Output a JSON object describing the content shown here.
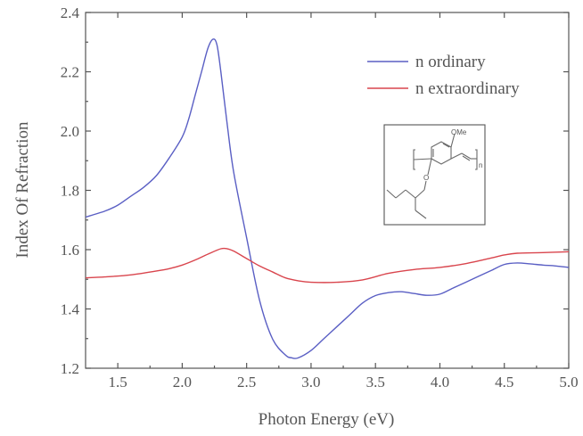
{
  "chart_data": {
    "type": "line",
    "xlabel": "Photon Energy (eV)",
    "ylabel": "Index Of Refraction",
    "xlim": [
      1.25,
      5.0
    ],
    "ylim": [
      1.2,
      2.4
    ],
    "xticks": [
      1.5,
      2.0,
      2.5,
      3.0,
      3.5,
      4.0,
      4.5,
      5.0
    ],
    "xtick_labels": [
      "1.5",
      "2.0",
      "2.5",
      "3.0",
      "3.5",
      "4.0",
      "4.5",
      "5.0"
    ],
    "yticks": [
      1.2,
      1.4,
      1.6,
      1.8,
      2.0,
      2.2,
      2.4
    ],
    "ytick_labels": [
      "1.2",
      "1.4",
      "1.6",
      "1.8",
      "2.0",
      "2.2",
      "2.4"
    ],
    "legend_position": "top-right",
    "grid": false,
    "series": [
      {
        "name": "n ordinary",
        "color": "#5a5fc4",
        "x": [
          1.25,
          1.4,
          1.5,
          1.6,
          1.7,
          1.8,
          1.9,
          2.0,
          2.05,
          2.1,
          2.15,
          2.2,
          2.24,
          2.27,
          2.3,
          2.35,
          2.4,
          2.5,
          2.6,
          2.7,
          2.8,
          2.85,
          2.9,
          3.0,
          3.1,
          3.2,
          3.3,
          3.4,
          3.5,
          3.6,
          3.7,
          3.8,
          3.9,
          4.0,
          4.1,
          4.2,
          4.3,
          4.4,
          4.5,
          4.6,
          4.7,
          4.8,
          4.9,
          5.0
        ],
        "y": [
          1.71,
          1.73,
          1.75,
          1.78,
          1.81,
          1.85,
          1.91,
          1.98,
          2.04,
          2.12,
          2.2,
          2.28,
          2.31,
          2.29,
          2.2,
          2.02,
          1.86,
          1.64,
          1.43,
          1.3,
          1.245,
          1.235,
          1.235,
          1.26,
          1.3,
          1.34,
          1.38,
          1.42,
          1.445,
          1.455,
          1.458,
          1.452,
          1.446,
          1.45,
          1.47,
          1.49,
          1.51,
          1.53,
          1.55,
          1.555,
          1.552,
          1.548,
          1.545,
          1.54
        ]
      },
      {
        "name": "n extraordinary",
        "color": "#d9454d",
        "x": [
          1.25,
          1.4,
          1.6,
          1.8,
          1.9,
          2.0,
          2.1,
          2.2,
          2.3,
          2.35,
          2.4,
          2.5,
          2.6,
          2.7,
          2.8,
          2.9,
          3.0,
          3.2,
          3.4,
          3.6,
          3.8,
          4.0,
          4.2,
          4.4,
          4.5,
          4.6,
          4.8,
          5.0
        ],
        "y": [
          1.505,
          1.508,
          1.515,
          1.528,
          1.536,
          1.548,
          1.565,
          1.585,
          1.603,
          1.603,
          1.595,
          1.57,
          1.545,
          1.525,
          1.505,
          1.495,
          1.49,
          1.49,
          1.498,
          1.52,
          1.533,
          1.54,
          1.553,
          1.572,
          1.582,
          1.588,
          1.59,
          1.593
        ]
      }
    ]
  },
  "inset": {
    "label_ome": "OMe",
    "label_n": "n"
  }
}
